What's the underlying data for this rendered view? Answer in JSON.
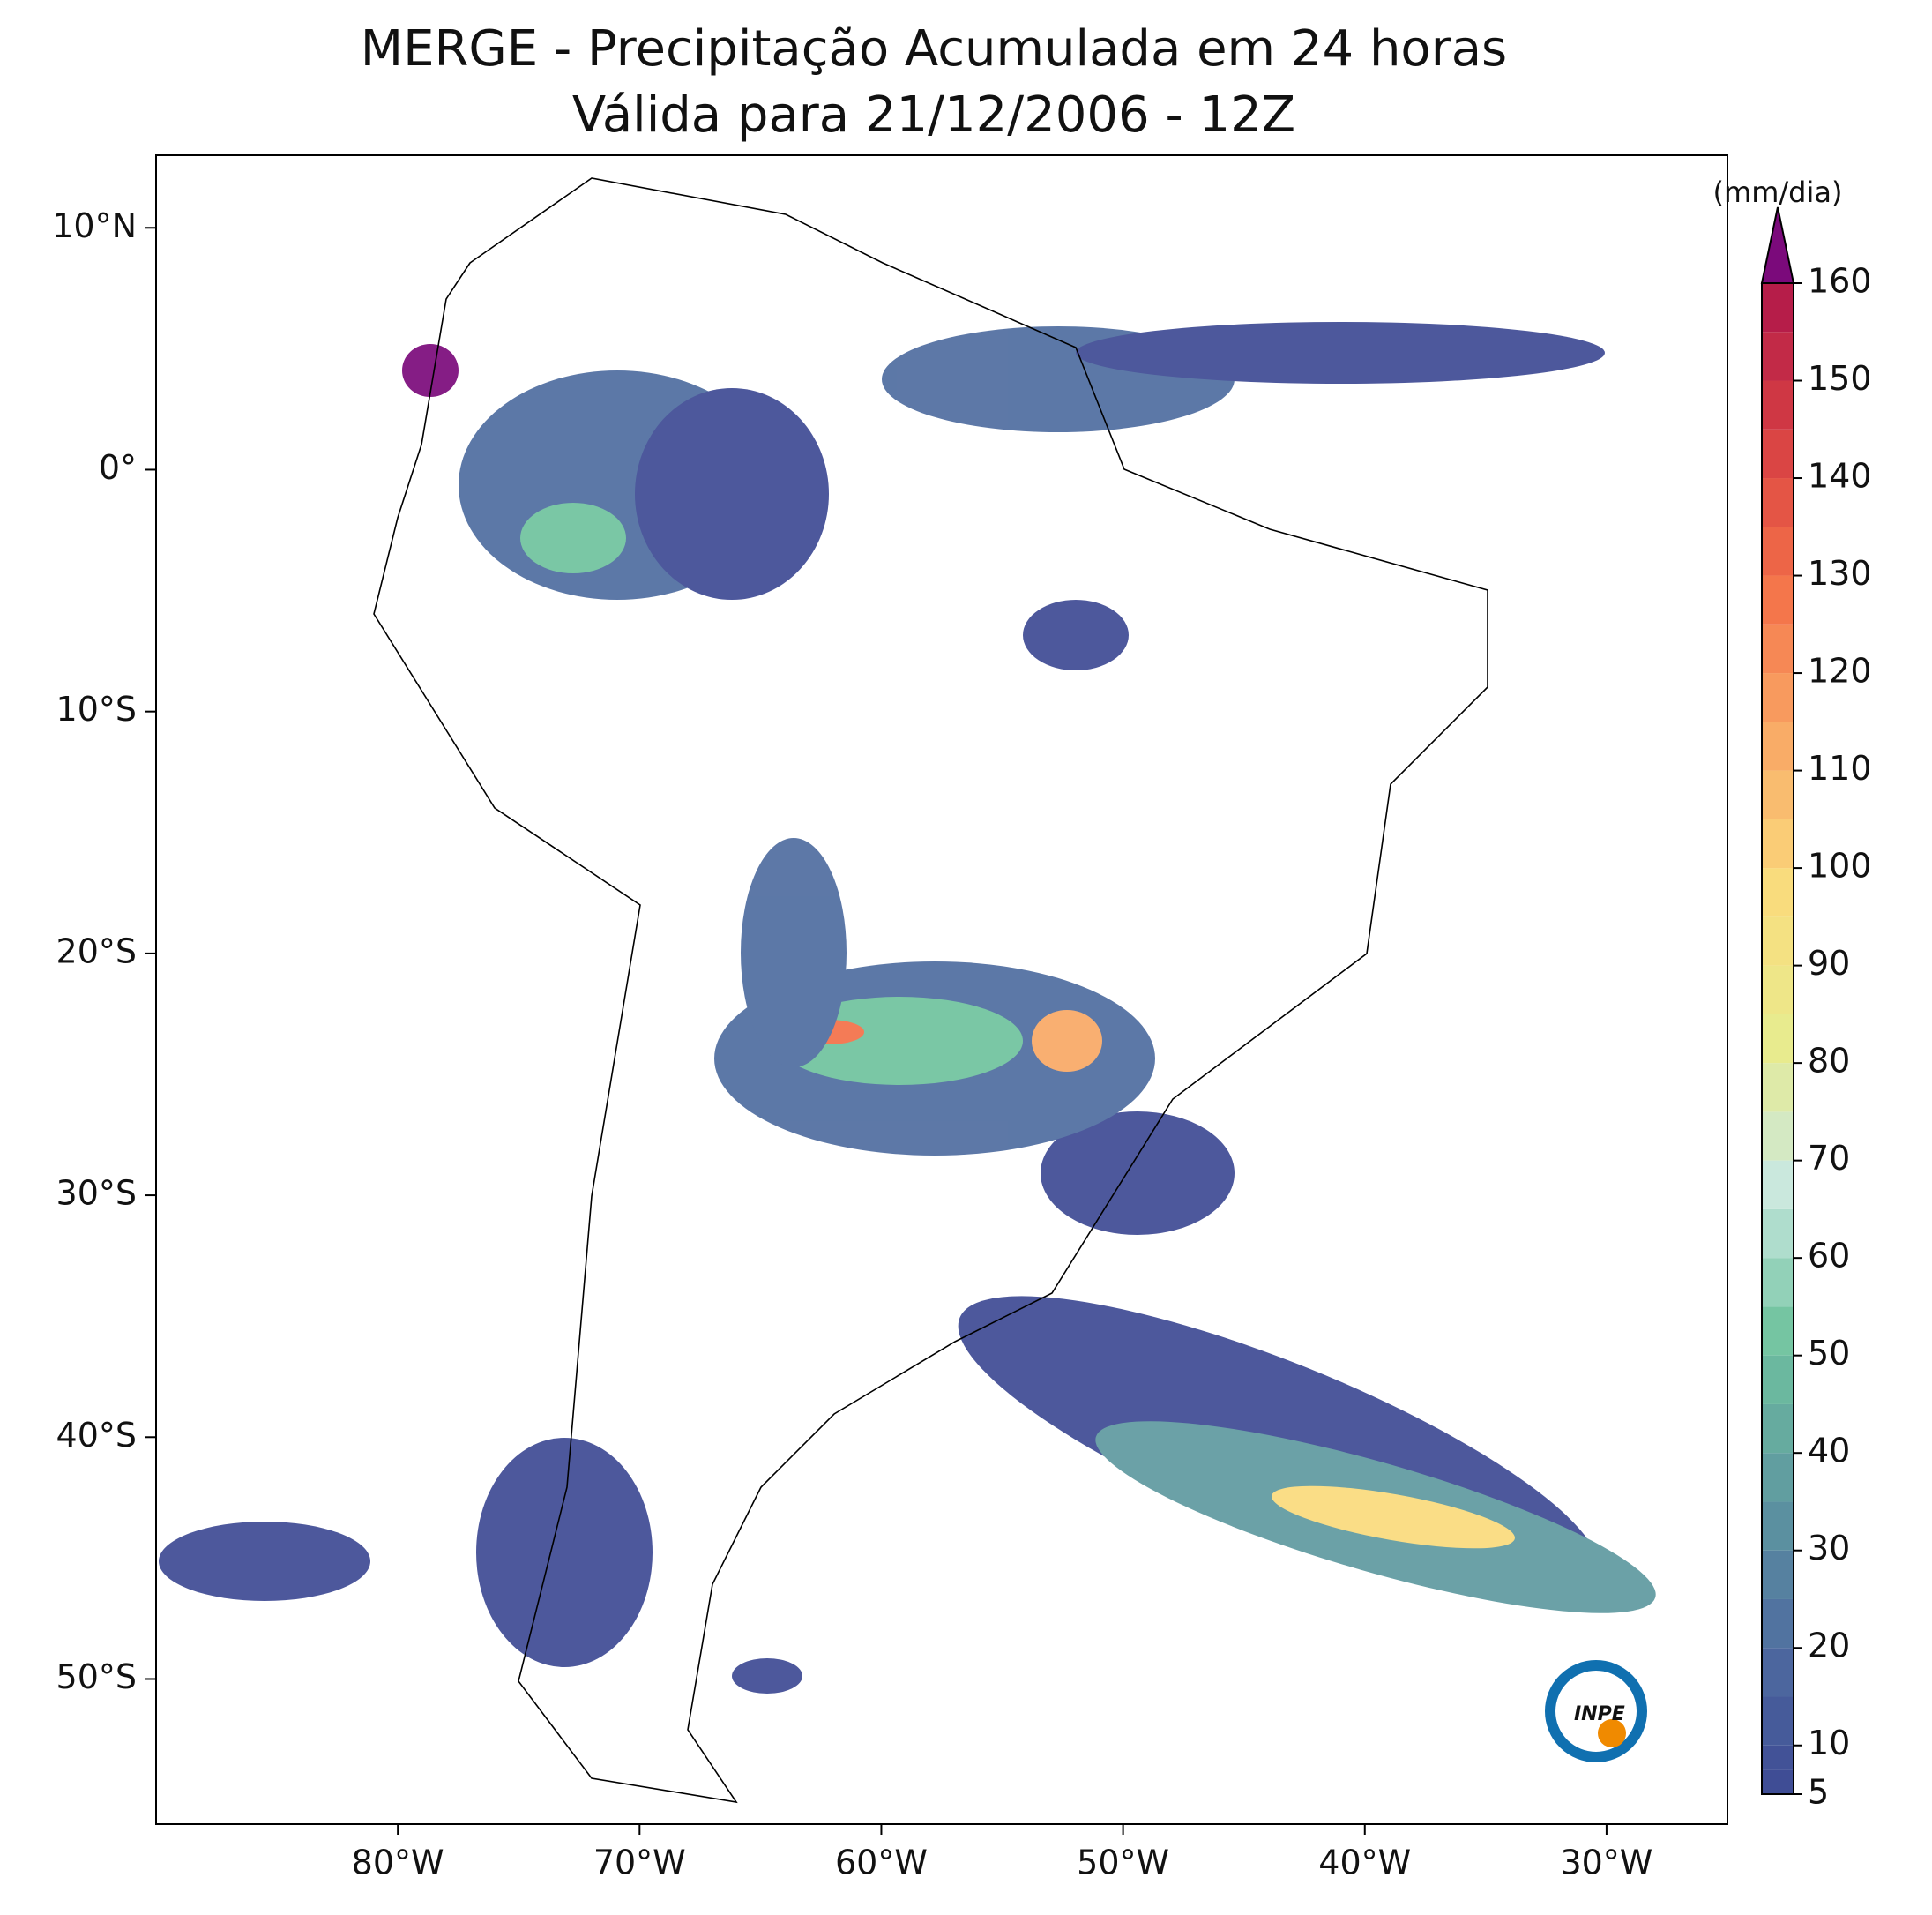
{
  "chart_data": {
    "type": "map",
    "title": "MERGE - Precipitação Acumulada em 24 horas",
    "subtitle": "Válida para 21/12/2006 - 12Z",
    "xlim": [
      -90,
      -25
    ],
    "ylim": [
      -56,
      13
    ],
    "xticks": [
      {
        "value": -80,
        "label": "80°W"
      },
      {
        "value": -70,
        "label": "70°W"
      },
      {
        "value": -60,
        "label": "60°W"
      },
      {
        "value": -50,
        "label": "50°W"
      },
      {
        "value": -40,
        "label": "40°W"
      },
      {
        "value": -30,
        "label": "30°W"
      }
    ],
    "yticks": [
      {
        "value": 10,
        "label": "10°N"
      },
      {
        "value": 0,
        "label": "0°"
      },
      {
        "value": -10,
        "label": "10°S"
      },
      {
        "value": -20,
        "label": "20°S"
      },
      {
        "value": -30,
        "label": "30°S"
      },
      {
        "value": -40,
        "label": "40°S"
      },
      {
        "value": -50,
        "label": "50°S"
      }
    ],
    "colorbar": {
      "label": "(mm/dia)",
      "lim": [
        5,
        160
      ],
      "ticks": [
        5,
        10,
        20,
        30,
        40,
        50,
        60,
        70,
        80,
        90,
        100,
        110,
        120,
        130,
        140,
        150,
        160
      ],
      "colors": [
        "#3e4a94",
        "#4f6da0",
        "#5f9aa0",
        "#6fc39e",
        "#c9e8e0",
        "#e8eb8e",
        "#fadb7c",
        "#f9a966",
        "#f47048",
        "#d63f43",
        "#b0174a"
      ],
      "extend_color": "#7b0a7b"
    },
    "logo_text": "INPE"
  }
}
